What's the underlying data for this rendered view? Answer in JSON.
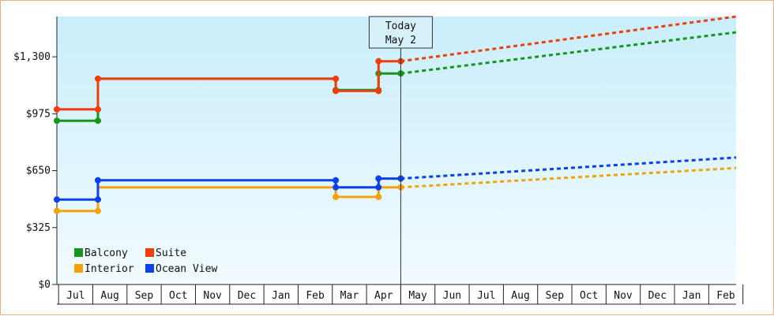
{
  "chart_data": {
    "type": "line",
    "line_style": "step",
    "y_tick_labels": [
      "$0",
      "$325",
      "$650",
      "$975",
      "$1,300"
    ],
    "y_tick_values": [
      0,
      325,
      650,
      975,
      1300
    ],
    "ylim": [
      0,
      1530
    ],
    "x_tick_labels": [
      "Jul",
      "Aug",
      "Sep",
      "Oct",
      "Nov",
      "Dec",
      "Jan",
      "Feb",
      "Mar",
      "Apr",
      "May",
      "Jun",
      "Jul",
      "Aug",
      "Sep",
      "Oct",
      "Nov",
      "Dec",
      "Jan",
      "Feb"
    ],
    "xlim": [
      -0.55,
      19.3
    ],
    "today_marker": {
      "line1": "Today",
      "line2": "May 2",
      "x": 9.5
    },
    "legend": {
      "placement": "bottom-left"
    },
    "series": [
      {
        "name": "Balcony",
        "color": "#16961c",
        "points": [
          [
            -0.55,
            935
          ],
          [
            0.65,
            935
          ],
          [
            0.65,
            1175
          ],
          [
            1.65,
            1175
          ],
          [
            6.6,
            1175
          ],
          [
            7.6,
            1175
          ],
          [
            7.6,
            1110
          ],
          [
            8.85,
            1110
          ],
          [
            8.85,
            1205
          ],
          [
            9.5,
            1205
          ]
        ],
        "markers": [
          [
            -0.55,
            935
          ],
          [
            0.65,
            935
          ],
          [
            7.6,
            1110
          ],
          [
            8.85,
            1110
          ],
          [
            8.85,
            1205
          ],
          [
            9.5,
            1205
          ]
        ],
        "forecast": [
          [
            9.5,
            1205
          ],
          [
            19.3,
            1440
          ]
        ]
      },
      {
        "name": "Suite",
        "color": "#ef3d0c",
        "points": [
          [
            -0.55,
            1000
          ],
          [
            0.65,
            1000
          ],
          [
            0.65,
            1175
          ],
          [
            7.6,
            1175
          ],
          [
            7.6,
            1105
          ],
          [
            8.85,
            1105
          ],
          [
            8.85,
            1275
          ],
          [
            9.5,
            1275
          ]
        ],
        "markers": [
          [
            -0.55,
            1000
          ],
          [
            0.65,
            1000
          ],
          [
            0.65,
            1175
          ],
          [
            7.6,
            1175
          ],
          [
            7.6,
            1105
          ],
          [
            8.85,
            1105
          ],
          [
            8.85,
            1275
          ],
          [
            9.5,
            1275
          ]
        ],
        "forecast": [
          [
            9.5,
            1275
          ],
          [
            19.3,
            1530
          ]
        ]
      },
      {
        "name": "Interior",
        "color": "#f3a20d",
        "points": [
          [
            -0.55,
            420
          ],
          [
            0.65,
            420
          ],
          [
            0.65,
            555
          ],
          [
            7.6,
            555
          ],
          [
            7.6,
            500
          ],
          [
            8.85,
            500
          ],
          [
            8.85,
            555
          ],
          [
            9.5,
            555
          ]
        ],
        "markers": [
          [
            -0.55,
            420
          ],
          [
            0.65,
            420
          ],
          [
            7.6,
            500
          ],
          [
            8.85,
            500
          ],
          [
            9.5,
            555
          ]
        ],
        "forecast": [
          [
            9.5,
            555
          ],
          [
            19.3,
            665
          ]
        ]
      },
      {
        "name": "Ocean View",
        "color": "#0b3ff0",
        "points": [
          [
            -0.55,
            485
          ],
          [
            0.65,
            485
          ],
          [
            0.65,
            595
          ],
          [
            7.6,
            595
          ],
          [
            7.6,
            555
          ],
          [
            8.85,
            555
          ],
          [
            8.85,
            605
          ],
          [
            9.5,
            605
          ]
        ],
        "markers": [
          [
            -0.55,
            485
          ],
          [
            0.65,
            485
          ],
          [
            0.65,
            595
          ],
          [
            7.6,
            595
          ],
          [
            7.6,
            555
          ],
          [
            8.85,
            555
          ],
          [
            8.85,
            605
          ],
          [
            9.5,
            605
          ]
        ],
        "forecast": [
          [
            9.5,
            605
          ],
          [
            19.3,
            725
          ]
        ]
      }
    ]
  }
}
